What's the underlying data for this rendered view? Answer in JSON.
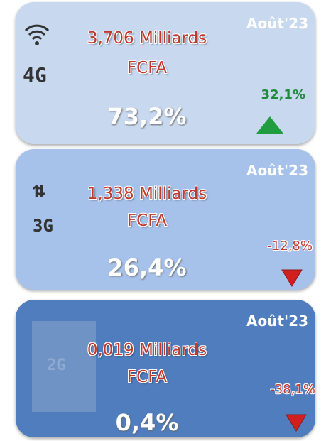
{
  "cards": [
    {
      "icon_label": "4G",
      "period": "Août'23",
      "amount_line1": "3,706 Milliards",
      "amount_line2": "FCFA",
      "share": "73,2%",
      "change": "32,1%",
      "trend": "up"
    },
    {
      "icon_label": "3G",
      "period": "Août'23",
      "amount_line1": "1,338 Milliards",
      "amount_line2": "FCFA",
      "share": "26,4%",
      "change": "-12,8%",
      "trend": "down"
    },
    {
      "icon_label": "2G",
      "period": "Août'23",
      "amount_line1": "0,019 Milliards",
      "amount_line2": "FCFA",
      "share": "0,4%",
      "change": "-38,1%",
      "trend": "down"
    }
  ]
}
